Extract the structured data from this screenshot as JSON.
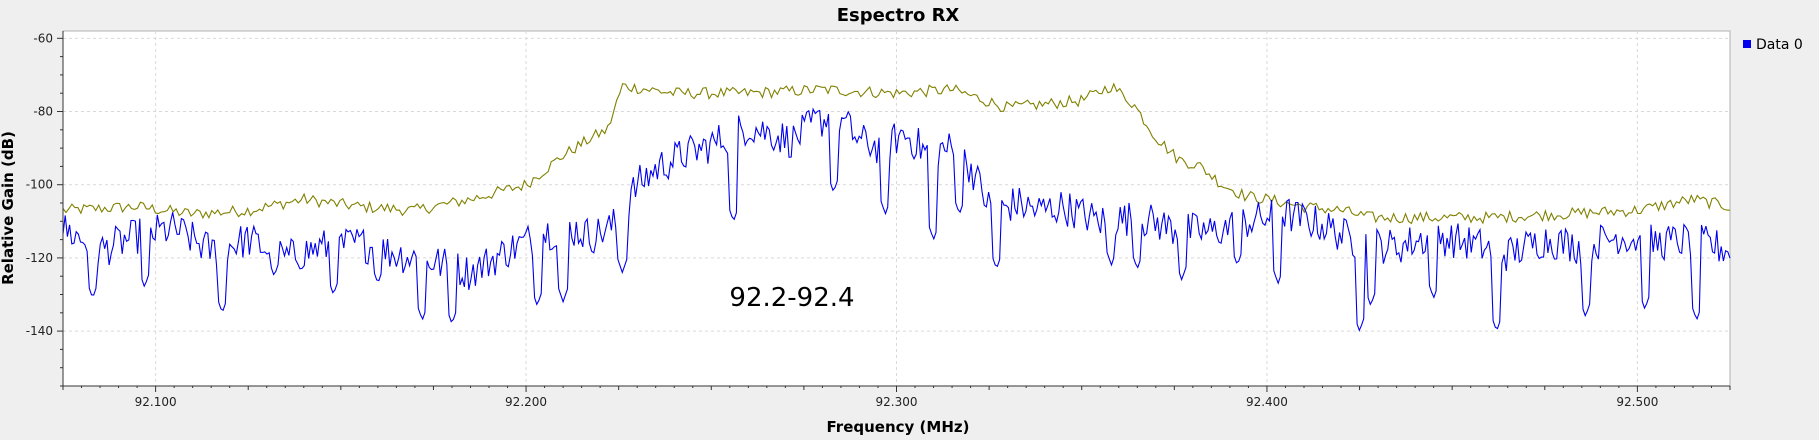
{
  "colors": {
    "background": "#efefef",
    "plot_background": "#ffffff",
    "grid": "#d9d9d9",
    "series_blue": "#0000ee",
    "series_olive": "#808000"
  },
  "chart_data": {
    "type": "line",
    "title": "Espectro RX",
    "xlabel": "Frequency (MHz)",
    "ylabel": "Relative Gain (dB)",
    "xlim": [
      92.075,
      92.525
    ],
    "ylim": [
      -155,
      -58
    ],
    "x_ticks": [
      92.1,
      92.2,
      92.3,
      92.4,
      92.5
    ],
    "x_tick_labels": [
      "92.100",
      "92.200",
      "92.300",
      "92.400",
      "92.500"
    ],
    "y_ticks": [
      -60,
      -80,
      -100,
      -120,
      -140
    ],
    "y_tick_labels": [
      "-60",
      "-80",
      "-100",
      "-120",
      "-140"
    ],
    "grid": true,
    "legend": {
      "position": "top-right",
      "entries": [
        {
          "label": "Data 0",
          "color": "#0000ee"
        }
      ]
    },
    "annotation": {
      "text": "92.2-92.4",
      "x": 92.3,
      "y": -127
    },
    "series": [
      {
        "color": "#0000ee",
        "x": [
          92.075,
          92.085,
          92.095,
          92.105,
          92.115,
          92.125,
          92.135,
          92.145,
          92.155,
          92.165,
          92.175,
          92.185,
          92.195,
          92.205,
          92.212,
          92.218,
          92.224,
          92.23,
          92.236,
          92.242,
          92.248,
          92.254,
          92.26,
          92.266,
          92.272,
          92.278,
          92.284,
          92.29,
          92.296,
          92.302,
          92.308,
          92.314,
          92.32,
          92.326,
          92.332,
          92.338,
          92.345,
          92.355,
          92.365,
          92.375,
          92.385,
          92.395,
          92.405,
          92.415,
          92.425,
          92.435,
          92.445,
          92.455,
          92.465,
          92.475,
          92.485,
          92.495,
          92.505,
          92.515,
          92.525
        ],
        "y": [
          -112,
          -118,
          -114,
          -112,
          -118,
          -115,
          -120,
          -117,
          -116,
          -119,
          -121,
          -124,
          -118,
          -113,
          -112,
          -114,
          -111,
          -100,
          -95,
          -92,
          -90,
          -87,
          -84,
          -86,
          -88,
          -83,
          -81,
          -88,
          -90,
          -86,
          -91,
          -90,
          -95,
          -108,
          -105,
          -107,
          -106,
          -110,
          -109,
          -112,
          -113,
          -110,
          -108,
          -111,
          -116,
          -117,
          -114,
          -116,
          -119,
          -115,
          -117,
          -114,
          -116,
          -115,
          -118
        ],
        "dips_x": [
          92.083,
          92.097,
          92.118,
          92.132,
          92.148,
          92.16,
          92.172,
          92.18,
          92.203,
          92.21,
          92.226,
          92.256,
          92.283,
          92.297,
          92.31,
          92.317,
          92.327,
          92.358,
          92.365,
          92.377,
          92.392,
          92.403,
          92.425,
          92.428,
          92.445,
          92.462,
          92.486,
          92.502,
          92.516
        ],
        "dips_y": [
          -131,
          -128,
          -135,
          -125,
          -130,
          -127,
          -137,
          -138,
          -133,
          -132,
          -124,
          -110,
          -102,
          -108,
          -115,
          -108,
          -123,
          -122,
          -123,
          -126,
          -122,
          -127,
          -140,
          -133,
          -131,
          -140,
          -136,
          -134,
          -137
        ]
      },
      {
        "color": "#808000",
        "x": [
          92.075,
          92.095,
          92.11,
          92.125,
          92.14,
          92.155,
          92.17,
          92.185,
          92.2,
          92.21,
          92.218,
          92.222,
          92.226,
          92.24,
          92.26,
          92.28,
          92.3,
          92.315,
          92.33,
          92.34,
          92.35,
          92.358,
          92.364,
          92.37,
          92.376,
          92.382,
          92.388,
          92.394,
          92.4,
          92.41,
          92.42,
          92.428,
          92.44,
          92.46,
          92.48,
          92.5,
          92.515,
          92.525
        ],
        "y": [
          -107,
          -106,
          -108,
          -107,
          -104,
          -106,
          -107,
          -104,
          -100,
          -92,
          -87,
          -85,
          -73,
          -75,
          -75,
          -74,
          -75,
          -74,
          -79,
          -78,
          -77,
          -73,
          -78,
          -87,
          -93,
          -95,
          -100,
          -103,
          -104,
          -106,
          -107,
          -109,
          -109,
          -109,
          -108,
          -107,
          -104,
          -106
        ]
      }
    ]
  }
}
